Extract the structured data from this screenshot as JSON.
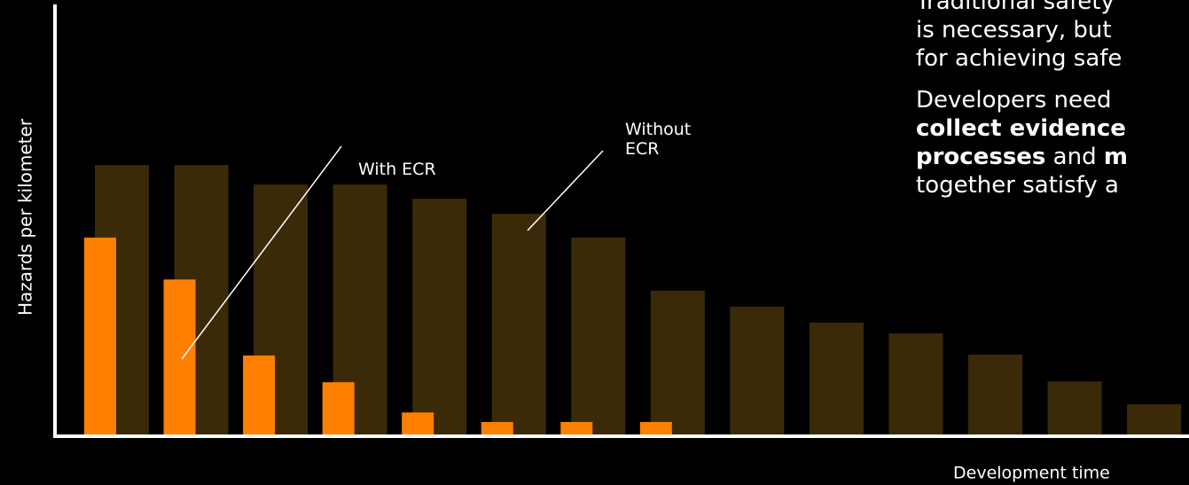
{
  "chart_data": {
    "type": "bar",
    "y_label": "Hazards per kilometer",
    "x_label": "Development time",
    "categories": [
      null,
      null,
      null,
      null,
      null,
      null,
      null,
      null,
      null,
      null,
      null,
      null,
      null,
      null
    ],
    "ylim": [
      0,
      100
    ],
    "series": [
      {
        "name": "Without ECR",
        "color": "#3b2a08",
        "values": [
          62.8,
          62.8,
          58.3,
          58.3,
          55.0,
          51.5,
          46.0,
          33.7,
          30.0,
          26.3,
          23.8,
          18.9,
          12.7,
          7.4
        ]
      },
      {
        "name": "With ECR",
        "color": "#ff7f00",
        "values": [
          46.0,
          36.3,
          18.7,
          12.5,
          5.5,
          3.3,
          3.3,
          3.3,
          null,
          null,
          null,
          null,
          null,
          null
        ]
      }
    ]
  },
  "text_panel": {
    "paragraph_1": [
      "Traditional safety",
      "is necessary, but",
      "for achieving safe"
    ],
    "paragraph_2": {
      "line_1": "Developers need",
      "line_2": "collect evidence",
      "line_3": [
        "processes",
        " and ",
        "m"
      ],
      "line_4": "together satisfy a"
    }
  }
}
